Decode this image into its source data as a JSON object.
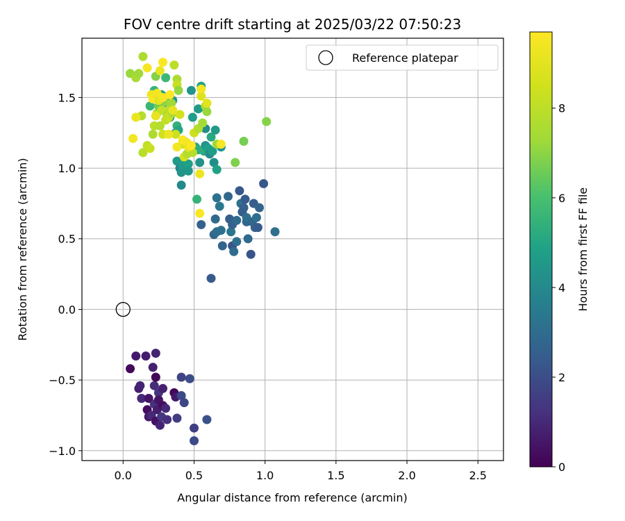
{
  "chart_data": {
    "type": "scatter",
    "title": "FOV centre drift starting at 2025/03/22 07:50:23",
    "xlabel": "Angular distance from reference (arcmin)",
    "ylabel": "Rotation from reference (arcmin)",
    "colorbar_label": "Hours from first FF file",
    "xlim": [
      -0.29,
      2.68
    ],
    "ylim": [
      -1.07,
      1.92
    ],
    "clim": [
      0,
      9.7
    ],
    "colormap": "viridis",
    "grid": true,
    "legend_position": "upper right",
    "xticks": [
      {
        "value": 0.0,
        "label": "0.0"
      },
      {
        "value": 0.5,
        "label": "0.5"
      },
      {
        "value": 1.0,
        "label": "1.0"
      },
      {
        "value": 1.5,
        "label": "1.5"
      },
      {
        "value": 2.0,
        "label": "2.0"
      },
      {
        "value": 2.5,
        "label": "2.5"
      }
    ],
    "yticks": [
      {
        "value": -1.0,
        "label": "−1.0"
      },
      {
        "value": -0.5,
        "label": "−0.5"
      },
      {
        "value": 0.0,
        "label": "0.0"
      },
      {
        "value": 0.5,
        "label": "0.5"
      },
      {
        "value": 1.0,
        "label": "1.0"
      },
      {
        "value": 1.5,
        "label": "1.5"
      }
    ],
    "cticks": [
      {
        "value": 0,
        "label": "0"
      },
      {
        "value": 2,
        "label": "2"
      },
      {
        "value": 4,
        "label": "4"
      },
      {
        "value": 6,
        "label": "6"
      },
      {
        "value": 8,
        "label": "8"
      }
    ],
    "reference": {
      "name": "Reference platepar",
      "x": 0.0,
      "y": 0.0
    },
    "points": [
      [
        0.05,
        -0.42,
        0.2
      ],
      [
        0.09,
        -0.33,
        0.6
      ],
      [
        0.11,
        -0.56,
        0.8
      ],
      [
        0.12,
        -0.54,
        0.9
      ],
      [
        0.13,
        -0.63,
        1.0
      ],
      [
        0.16,
        -0.33,
        0.7
      ],
      [
        0.17,
        -0.71,
        0.3
      ],
      [
        0.18,
        -0.63,
        0.5
      ],
      [
        0.18,
        -0.76,
        0.6
      ],
      [
        0.2,
        -0.75,
        1.0
      ],
      [
        0.21,
        -0.41,
        0.8
      ],
      [
        0.22,
        -0.67,
        1.2
      ],
      [
        0.22,
        -0.54,
        1.1
      ],
      [
        0.23,
        -0.31,
        0.9
      ],
      [
        0.23,
        -0.48,
        0.1
      ],
      [
        0.23,
        -0.79,
        0.4
      ],
      [
        0.24,
        -0.71,
        0.7
      ],
      [
        0.25,
        -0.59,
        1.3
      ],
      [
        0.25,
        -0.64,
        0.5
      ],
      [
        0.26,
        -0.82,
        0.9
      ],
      [
        0.27,
        -0.76,
        1.4
      ],
      [
        0.28,
        -0.68,
        0.3
      ],
      [
        0.28,
        -0.56,
        0.8
      ],
      [
        0.3,
        -0.7,
        1.0
      ],
      [
        0.31,
        -0.78,
        1.2
      ],
      [
        0.36,
        -0.59,
        0.1
      ],
      [
        0.37,
        -0.62,
        0.6
      ],
      [
        0.38,
        -0.77,
        1.5
      ],
      [
        0.41,
        -0.48,
        1.7
      ],
      [
        0.41,
        -0.61,
        1.9
      ],
      [
        0.43,
        -0.66,
        1.8
      ],
      [
        0.47,
        -0.49,
        2.0
      ],
      [
        0.5,
        -0.84,
        1.6
      ],
      [
        0.5,
        -0.93,
        1.9
      ],
      [
        0.59,
        -0.78,
        2.1
      ],
      [
        0.62,
        0.22,
        2.4
      ],
      [
        0.55,
        0.6,
        2.6
      ],
      [
        0.64,
        0.53,
        2.8
      ],
      [
        0.65,
        0.64,
        2.9
      ],
      [
        0.66,
        0.55,
        3.0
      ],
      [
        0.66,
        0.79,
        3.2
      ],
      [
        0.68,
        0.73,
        3.4
      ],
      [
        0.69,
        0.56,
        3.1
      ],
      [
        0.7,
        0.45,
        2.7
      ],
      [
        0.74,
        0.8,
        2.8
      ],
      [
        0.75,
        0.64,
        2.5
      ],
      [
        0.76,
        0.55,
        3.3
      ],
      [
        0.77,
        0.6,
        2.6
      ],
      [
        0.77,
        0.45,
        2.2
      ],
      [
        0.78,
        0.41,
        3.0
      ],
      [
        0.8,
        0.63,
        2.9
      ],
      [
        0.8,
        0.48,
        3.1
      ],
      [
        0.82,
        0.84,
        2.3
      ],
      [
        0.83,
        0.75,
        3.2
      ],
      [
        0.84,
        0.69,
        2.5
      ],
      [
        0.85,
        0.72,
        2.6
      ],
      [
        0.86,
        0.78,
        2.4
      ],
      [
        0.87,
        0.62,
        2.7
      ],
      [
        0.87,
        0.65,
        3.1
      ],
      [
        0.88,
        0.5,
        2.9
      ],
      [
        0.9,
        0.39,
        2.2
      ],
      [
        0.91,
        0.62,
        2.8
      ],
      [
        0.92,
        0.75,
        2.5
      ],
      [
        0.93,
        0.58,
        2.6
      ],
      [
        0.94,
        0.65,
        3.0
      ],
      [
        0.95,
        0.58,
        2.4
      ],
      [
        0.96,
        0.72,
        2.7
      ],
      [
        0.99,
        0.89,
        2.3
      ],
      [
        1.07,
        0.55,
        3.1
      ],
      [
        0.19,
        1.44,
        5.6
      ],
      [
        0.22,
        1.55,
        5.5
      ],
      [
        0.23,
        1.5,
        5.3
      ],
      [
        0.27,
        1.52,
        4.8
      ],
      [
        0.31,
        1.46,
        5.1
      ],
      [
        0.33,
        1.36,
        4.9
      ],
      [
        0.35,
        1.48,
        4.5
      ],
      [
        0.37,
        1.25,
        4.2
      ],
      [
        0.38,
        1.05,
        4.6
      ],
      [
        0.4,
        1.0,
        3.9
      ],
      [
        0.41,
        0.97,
        4.4
      ],
      [
        0.41,
        0.88,
        4.0
      ],
      [
        0.42,
        1.02,
        4.7
      ],
      [
        0.43,
        1.19,
        4.3
      ],
      [
        0.45,
        1.1,
        4.1
      ],
      [
        0.46,
        1.03,
        4.8
      ],
      [
        0.46,
        0.98,
        4.5
      ],
      [
        0.48,
        1.55,
        4.4
      ],
      [
        0.49,
        1.36,
        4.7
      ],
      [
        0.51,
        1.15,
        5.0
      ],
      [
        0.53,
        1.42,
        4.6
      ],
      [
        0.54,
        1.04,
        4.3
      ],
      [
        0.55,
        1.58,
        4.9
      ],
      [
        0.57,
        1.12,
        5.2
      ],
      [
        0.58,
        1.28,
        4.1
      ],
      [
        0.58,
        1.16,
        4.4
      ],
      [
        0.6,
        1.14,
        4.8
      ],
      [
        0.61,
        1.1,
        4.0
      ],
      [
        0.62,
        1.22,
        5.1
      ],
      [
        0.63,
        1.12,
        4.7
      ],
      [
        0.64,
        1.04,
        4.2
      ],
      [
        0.65,
        1.27,
        4.6
      ],
      [
        0.66,
        0.99,
        4.9
      ],
      [
        0.69,
        1.15,
        4.4
      ],
      [
        0.52,
        0.78,
        5.5
      ],
      [
        0.38,
        1.3,
        5.4
      ],
      [
        0.39,
        1.27,
        5.0
      ],
      [
        0.3,
        1.64,
        5.7
      ],
      [
        0.53,
        1.13,
        5.3
      ],
      [
        0.05,
        1.67,
        7.2
      ],
      [
        0.09,
        1.64,
        7.5
      ],
      [
        0.11,
        1.67,
        7.3
      ],
      [
        0.13,
        1.37,
        7.8
      ],
      [
        0.14,
        1.79,
        7.6
      ],
      [
        0.14,
        1.11,
        7.9
      ],
      [
        0.17,
        1.16,
        8.1
      ],
      [
        0.19,
        1.14,
        8.3
      ],
      [
        0.21,
        1.24,
        7.6
      ],
      [
        0.22,
        1.3,
        8.0
      ],
      [
        0.23,
        1.65,
        6.9
      ],
      [
        0.24,
        1.39,
        7.4
      ],
      [
        0.25,
        1.44,
        6.6
      ],
      [
        0.26,
        1.3,
        7.8
      ],
      [
        0.27,
        1.41,
        8.2
      ],
      [
        0.28,
        1.24,
        8.5
      ],
      [
        0.29,
        1.47,
        7.0
      ],
      [
        0.3,
        1.34,
        8.1
      ],
      [
        0.31,
        1.38,
        7.7
      ],
      [
        0.32,
        1.36,
        8.3
      ],
      [
        0.33,
        1.42,
        7.9
      ],
      [
        0.34,
        1.46,
        7.3
      ],
      [
        0.35,
        1.39,
        7.5
      ],
      [
        0.36,
        1.73,
        8.0
      ],
      [
        0.37,
        1.24,
        8.4
      ],
      [
        0.38,
        1.63,
        7.6
      ],
      [
        0.38,
        1.59,
        8.2
      ],
      [
        0.39,
        1.55,
        7.1
      ],
      [
        0.4,
        1.38,
        8.6
      ],
      [
        0.42,
        1.17,
        8.5
      ],
      [
        0.43,
        1.08,
        8.7
      ],
      [
        0.45,
        1.1,
        7.8
      ],
      [
        0.47,
        1.14,
        8.3
      ],
      [
        0.49,
        1.11,
        7.9
      ],
      [
        0.5,
        1.25,
        8.4
      ],
      [
        0.53,
        1.28,
        7.8
      ],
      [
        0.56,
        1.32,
        7.4
      ],
      [
        0.58,
        1.44,
        7.5
      ],
      [
        0.59,
        1.4,
        7.2
      ],
      [
        0.66,
        1.17,
        7.3
      ],
      [
        0.79,
        1.04,
        6.8
      ],
      [
        0.85,
        1.19,
        6.7
      ],
      [
        1.01,
        1.33,
        6.9
      ],
      [
        0.55,
        1.51,
        8.8
      ],
      [
        0.07,
        1.21,
        9.4
      ],
      [
        0.09,
        1.36,
        9.2
      ],
      [
        0.17,
        1.71,
        9.5
      ],
      [
        0.2,
        1.52,
        9.3
      ],
      [
        0.21,
        1.49,
        9.6
      ],
      [
        0.23,
        1.37,
        9.1
      ],
      [
        0.24,
        1.53,
        9.4
      ],
      [
        0.25,
        1.48,
        9.0
      ],
      [
        0.26,
        1.69,
        9.2
      ],
      [
        0.28,
        1.75,
        9.6
      ],
      [
        0.28,
        1.5,
        9.5
      ],
      [
        0.32,
        1.24,
        9.3
      ],
      [
        0.33,
        1.52,
        9.7
      ],
      [
        0.35,
        1.41,
        9.1
      ],
      [
        0.38,
        1.15,
        9.4
      ],
      [
        0.42,
        1.2,
        9.6
      ],
      [
        0.45,
        1.18,
        9.5
      ],
      [
        0.46,
        1.15,
        9.2
      ],
      [
        0.54,
        0.96,
        9.3
      ],
      [
        0.54,
        0.68,
        9.6
      ],
      [
        0.69,
        1.17,
        9.5
      ],
      [
        0.55,
        1.56,
        9.4
      ],
      [
        0.59,
        1.46,
        9.0
      ],
      [
        0.48,
        1.16,
        9.7
      ]
    ]
  }
}
